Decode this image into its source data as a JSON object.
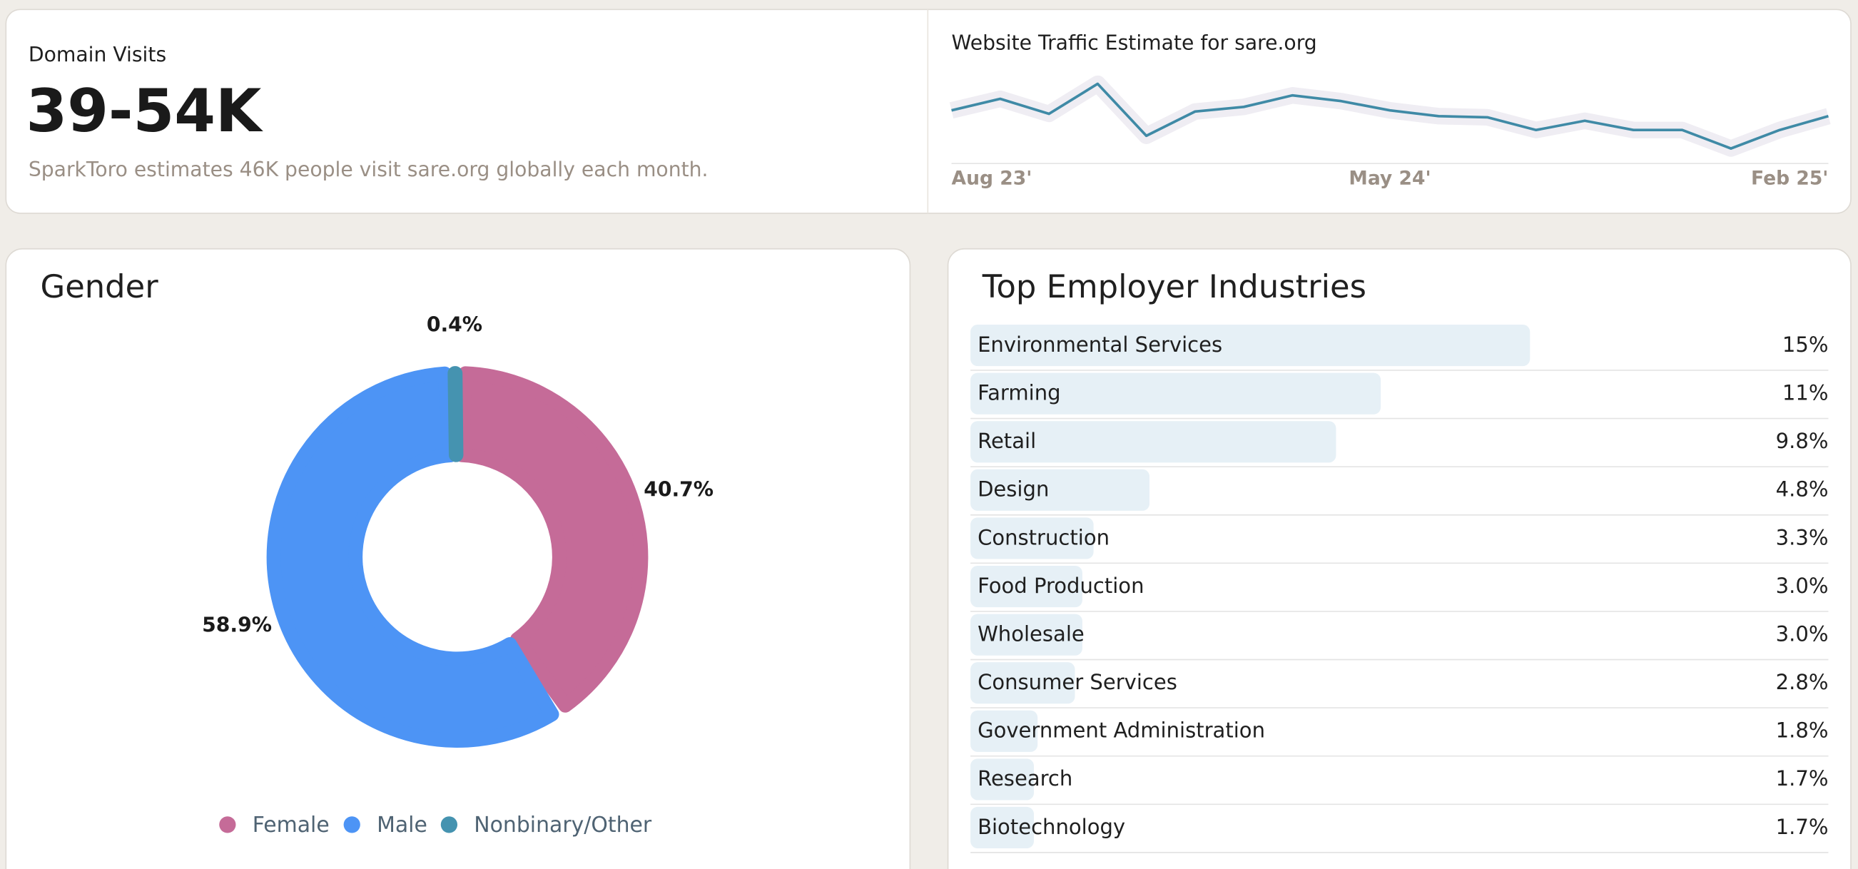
{
  "domain_visits": {
    "label": "Domain Visits",
    "value": "39-54K",
    "description": "SparkToro estimates 46K people visit sare.org globally each month."
  },
  "chart_data": [
    {
      "type": "line",
      "title": "Website Traffic Estimate for sare.org",
      "categories": [
        "Aug 23'",
        null,
        null,
        null,
        null,
        null,
        null,
        null,
        null,
        "May 24'",
        null,
        null,
        null,
        null,
        null,
        null,
        null,
        null,
        "Feb 25'"
      ],
      "values": [
        48.4,
        52.4,
        47.2,
        57.6,
        39.6,
        48,
        49.6,
        53.6,
        51.6,
        48.4,
        46.4,
        46,
        41.6,
        44.8,
        41.6,
        41.6,
        35.2,
        41.6,
        46.4
      ],
      "color": "#3f8aa6",
      "ylim": [
        30,
        62
      ]
    },
    {
      "type": "pie",
      "title": "Gender",
      "categories": [
        "Female",
        "Male",
        "Nonbinary/Other"
      ],
      "values": [
        40.7,
        58.9,
        0.4
      ],
      "value_labels": [
        "40.7%",
        "58.9%",
        "0.4%"
      ],
      "colors": [
        "#c56b98",
        "#4d94f5",
        "#4593b0"
      ],
      "donut": true
    },
    {
      "type": "bar",
      "orientation": "horizontal",
      "title": "Top Employer Industries",
      "categories": [
        "Environmental Services",
        "Farming",
        "Retail",
        "Design",
        "Construction",
        "Food Production",
        "Wholesale",
        "Consumer Services",
        "Government Administration",
        "Research",
        "Biotechnology"
      ],
      "values": [
        15,
        11,
        9.8,
        4.8,
        3.3,
        3.0,
        3.0,
        2.8,
        1.8,
        1.7,
        1.7
      ],
      "value_labels": [
        "15%",
        "11%",
        "9.8%",
        "4.8%",
        "3.3%",
        "3.0%",
        "3.0%",
        "2.8%",
        "1.8%",
        "1.7%",
        "1.7%"
      ],
      "color": "#e6f0f6",
      "xlim": [
        0,
        23
      ]
    }
  ]
}
